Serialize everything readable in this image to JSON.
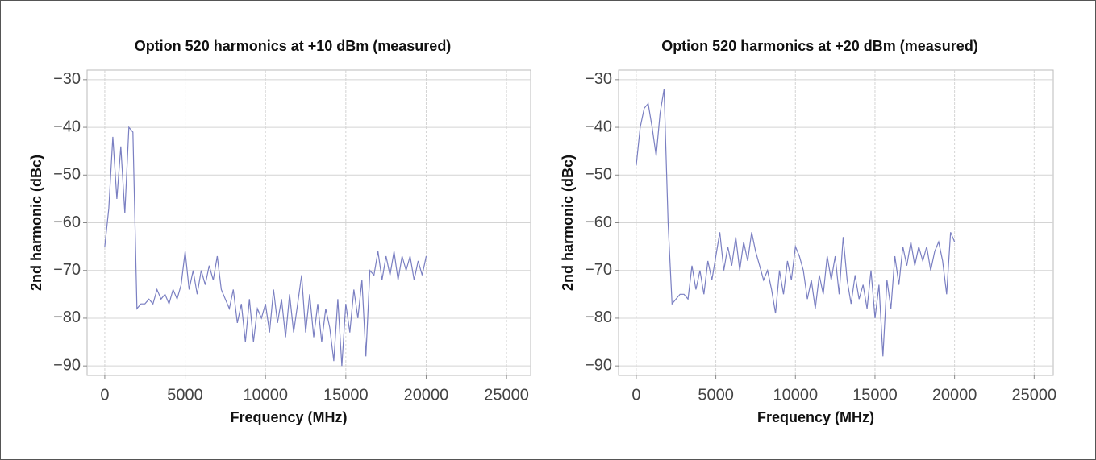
{
  "chart_data": [
    {
      "type": "line",
      "title": "Option 520 harmonics at +10 dBm (measured)",
      "x_label": "Frequency (MHz)",
      "y_label": "2nd harmonic (dBc)",
      "color": "#7a7fc2",
      "grid": true,
      "xlim": [
        -1100,
        26500
      ],
      "ylim": [
        -92,
        -28
      ],
      "xticks": [
        0,
        5000,
        10000,
        15000,
        20000,
        25000
      ],
      "yticks": [
        {
          "value": -30,
          "label": "−30"
        },
        {
          "value": -40,
          "label": "−40"
        },
        {
          "value": -50,
          "label": "−50"
        },
        {
          "value": -60,
          "label": "−60"
        },
        {
          "value": -70,
          "label": "−70"
        },
        {
          "value": -80,
          "label": "−80"
        },
        {
          "value": -90,
          "label": "−90"
        }
      ],
      "x": [
        0,
        250,
        500,
        750,
        1000,
        1250,
        1500,
        1750,
        2000,
        2250,
        2500,
        2750,
        3000,
        3250,
        3500,
        3750,
        4000,
        4250,
        4500,
        4750,
        5000,
        5250,
        5500,
        5750,
        6000,
        6250,
        6500,
        6750,
        7000,
        7250,
        7500,
        7750,
        8000,
        8250,
        8500,
        8750,
        9000,
        9250,
        9500,
        9750,
        10000,
        10250,
        10500,
        10750,
        11000,
        11250,
        11500,
        11750,
        12000,
        12250,
        12500,
        12750,
        13000,
        13250,
        13500,
        13750,
        14000,
        14250,
        14500,
        14750,
        15000,
        15250,
        15500,
        15750,
        16000,
        16250,
        16500,
        16750,
        17000,
        17250,
        17500,
        17750,
        18000,
        18250,
        18500,
        18750,
        19000,
        19250,
        19500,
        19750,
        20000
      ],
      "values": [
        -65,
        -57,
        -42,
        -55,
        -44,
        -58,
        -40,
        -41,
        -78,
        -77,
        -77,
        -76,
        -77,
        -74,
        -76,
        -75,
        -77,
        -74,
        -76,
        -73,
        -66,
        -74,
        -70,
        -75,
        -70,
        -73,
        -69,
        -72,
        -67,
        -74,
        -76,
        -78,
        -74,
        -81,
        -77,
        -85,
        -76,
        -85,
        -78,
        -80,
        -77,
        -83,
        -74,
        -81,
        -76,
        -84,
        -75,
        -83,
        -77,
        -71,
        -83,
        -75,
        -84,
        -77,
        -85,
        -78,
        -82,
        -89,
        -76,
        -90,
        -77,
        -83,
        -74,
        -80,
        -72,
        -88,
        -70,
        -71,
        -66,
        -72,
        -67,
        -71,
        -66,
        -72,
        -67,
        -70,
        -67,
        -72,
        -68,
        -71,
        -67
      ]
    },
    {
      "type": "line",
      "title": "Option 520 harmonics at +20 dBm (measured)",
      "x_label": "Frequency (MHz)",
      "y_label": "2nd harmonic (dBc)",
      "color": "#7a7fc2",
      "grid": true,
      "xlim": [
        -1110,
        26200
      ],
      "ylim": [
        -92,
        -28
      ],
      "xticks": [
        0,
        5000,
        10000,
        15000,
        20000,
        25000
      ],
      "yticks": [
        {
          "value": -30,
          "label": "−30"
        },
        {
          "value": -40,
          "label": "−40"
        },
        {
          "value": -50,
          "label": "−50"
        },
        {
          "value": -60,
          "label": "−60"
        },
        {
          "value": -70,
          "label": "−70"
        },
        {
          "value": -80,
          "label": "−80"
        },
        {
          "value": -90,
          "label": "−90"
        }
      ],
      "x": [
        0,
        250,
        500,
        750,
        1000,
        1250,
        1500,
        1750,
        2000,
        2250,
        2500,
        2750,
        3000,
        3250,
        3500,
        3750,
        4000,
        4250,
        4500,
        4750,
        5000,
        5250,
        5500,
        5750,
        6000,
        6250,
        6500,
        6750,
        7000,
        7250,
        7500,
        7750,
        8000,
        8250,
        8500,
        8750,
        9000,
        9250,
        9500,
        9750,
        10000,
        10250,
        10500,
        10750,
        11000,
        11250,
        11500,
        11750,
        12000,
        12250,
        12500,
        12750,
        13000,
        13250,
        13500,
        13750,
        14000,
        14250,
        14500,
        14750,
        15000,
        15250,
        15500,
        15750,
        16000,
        16250,
        16500,
        16750,
        17000,
        17250,
        17500,
        17750,
        18000,
        18250,
        18500,
        18750,
        19000,
        19250,
        19500,
        19750,
        20000
      ],
      "values": [
        -48,
        -40,
        -36,
        -35,
        -40,
        -46,
        -37,
        -32,
        -60,
        -77,
        -76,
        -75,
        -75,
        -76,
        -69,
        -74,
        -70,
        -75,
        -68,
        -72,
        -67,
        -62,
        -70,
        -65,
        -69,
        -63,
        -70,
        -64,
        -68,
        -62,
        -66,
        -69,
        -72,
        -70,
        -74,
        -79,
        -70,
        -75,
        -68,
        -72,
        -65,
        -67,
        -70,
        -76,
        -72,
        -78,
        -71,
        -75,
        -67,
        -72,
        -67,
        -75,
        -63,
        -72,
        -77,
        -71,
        -76,
        -73,
        -78,
        -70,
        -80,
        -73,
        -88,
        -72,
        -78,
        -67,
        -73,
        -65,
        -69,
        -64,
        -69,
        -65,
        -68,
        -65,
        -70,
        -66,
        -64,
        -68,
        -75,
        -62,
        -64
      ]
    }
  ]
}
